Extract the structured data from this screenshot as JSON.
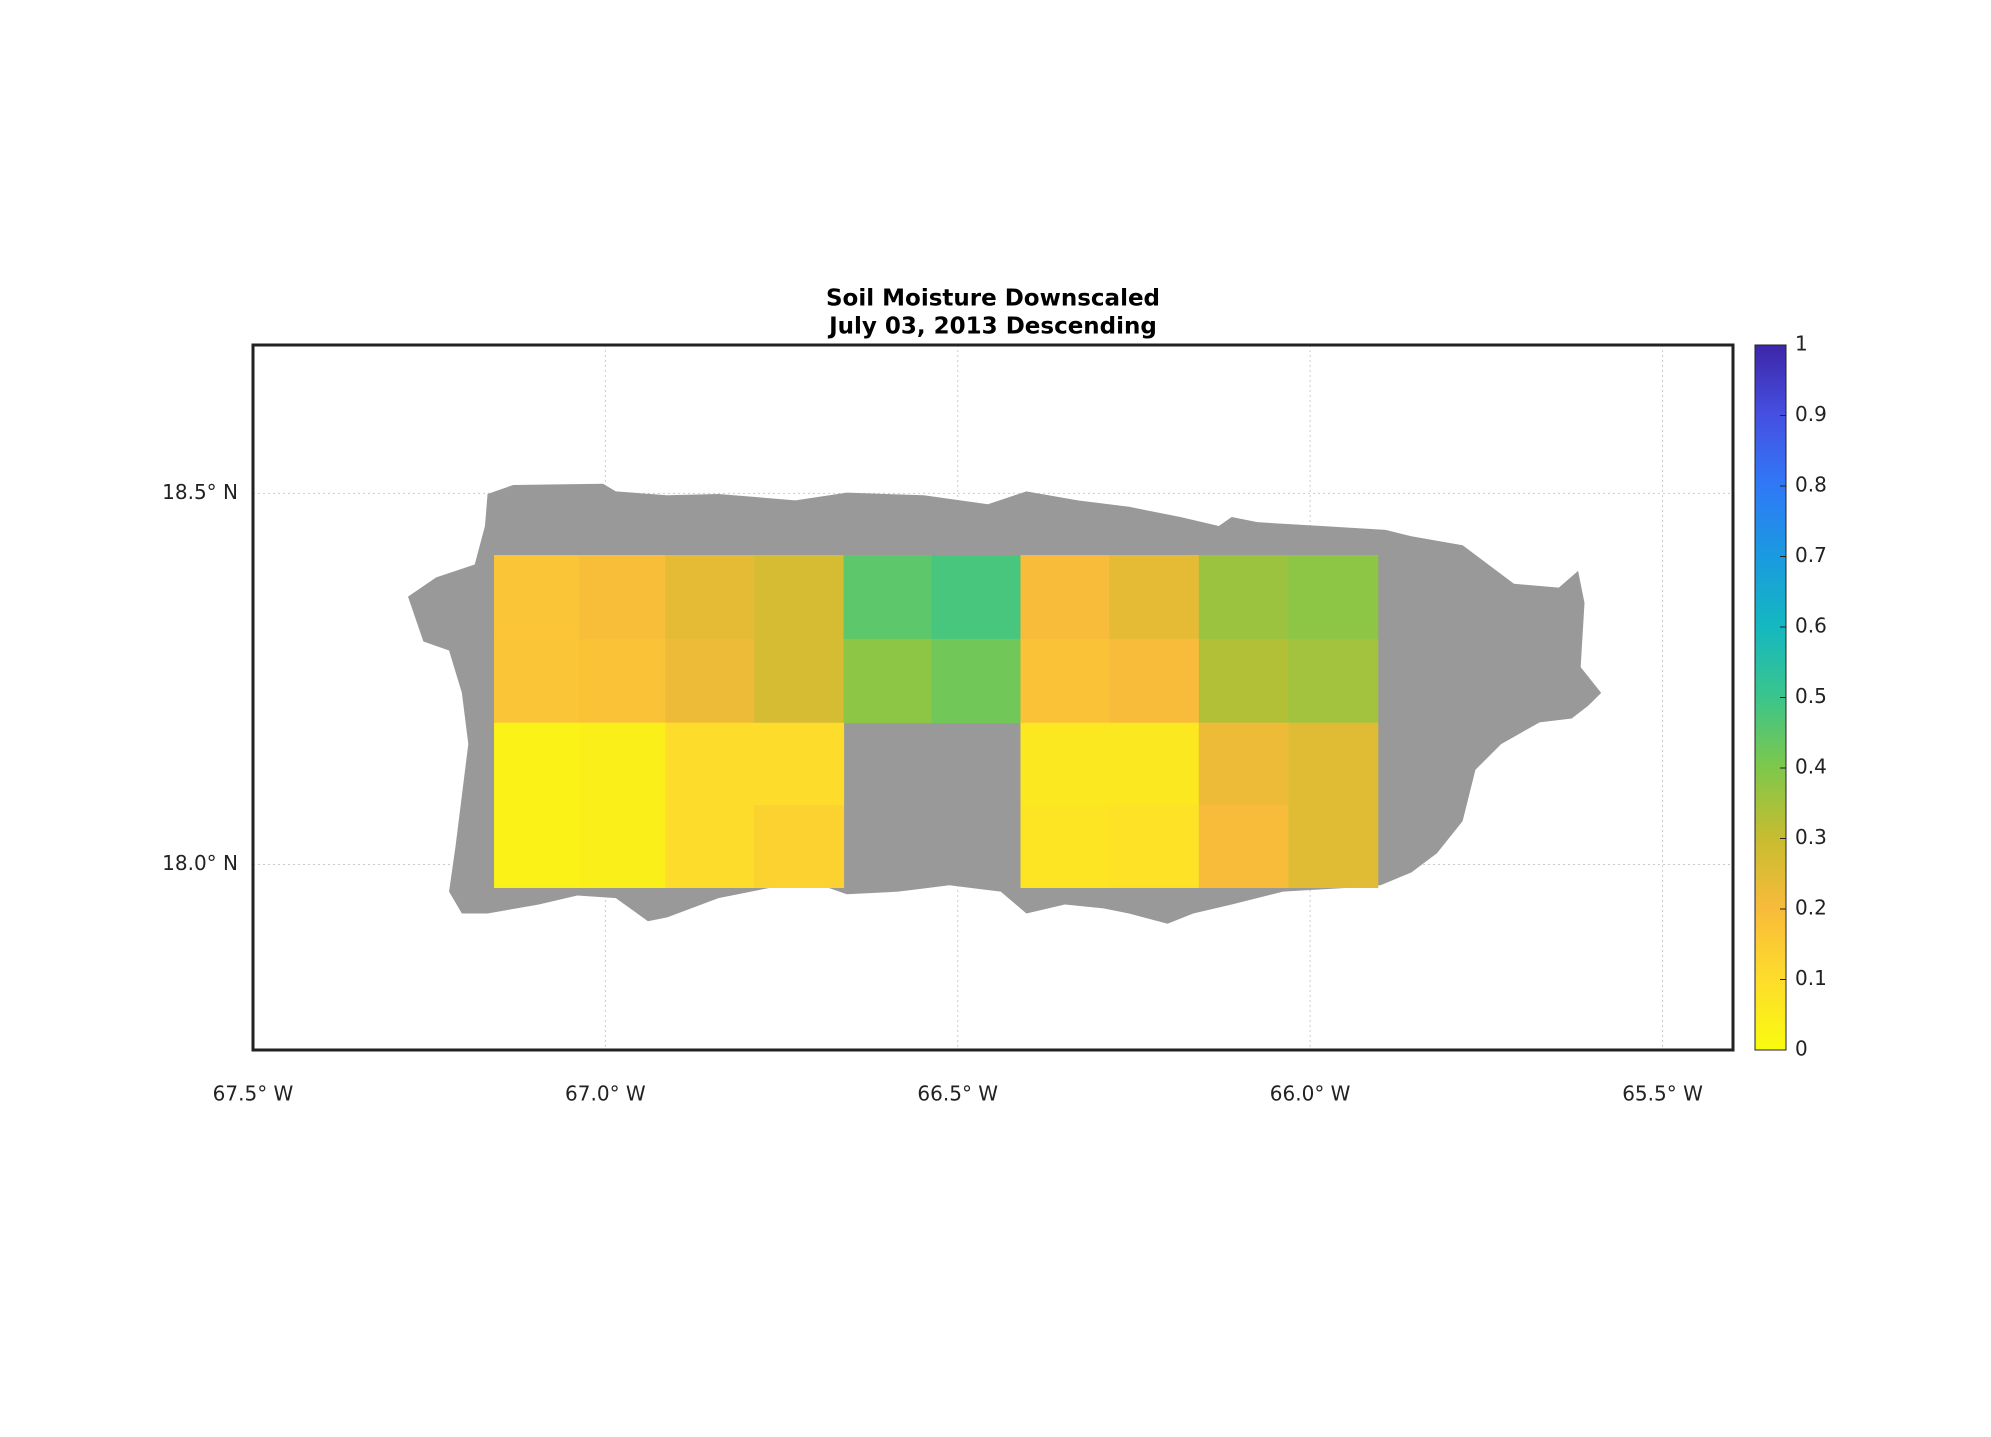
{
  "chart_data": {
    "type": "heatmap",
    "title": [
      "Soil Moisture Downscaled",
      "July 03, 2013 Descending"
    ],
    "xlim": [
      -67.5,
      -65.4
    ],
    "ylim": [
      17.75,
      18.7
    ],
    "xticks": [
      {
        "value": -67.5,
        "label": "67.5° W"
      },
      {
        "value": -67.0,
        "label": "67.0° W"
      },
      {
        "value": -66.5,
        "label": "66.5° W"
      },
      {
        "value": -66.0,
        "label": "66.0° W"
      },
      {
        "value": -65.5,
        "label": "65.5° W"
      }
    ],
    "yticks": [
      {
        "value": 18.0,
        "label": "18.0° N"
      },
      {
        "value": 18.5,
        "label": "18.5° N"
      }
    ],
    "grid": true,
    "x_edges": [
      -67.158,
      -67.037,
      -66.915,
      -66.789,
      -66.662,
      -66.537,
      -66.411,
      -66.285,
      -66.158,
      -66.031,
      -65.904
    ],
    "y_edges": [
      18.417,
      18.304,
      18.191,
      18.08,
      17.969
    ],
    "values": [
      [
        0.17,
        0.19,
        0.24,
        0.27,
        0.45,
        0.48,
        0.2,
        0.24,
        0.36,
        0.38
      ],
      [
        0.17,
        0.18,
        0.22,
        0.27,
        0.38,
        0.42,
        0.18,
        0.2,
        0.33,
        0.35
      ],
      [
        0.03,
        0.04,
        0.1,
        0.1,
        null,
        null,
        0.06,
        0.06,
        0.22,
        0.25
      ],
      [
        0.03,
        0.04,
        0.1,
        0.13,
        null,
        null,
        0.07,
        0.08,
        0.2,
        0.25
      ]
    ],
    "colorbar": {
      "zlim": [
        0,
        1
      ],
      "ticks": [
        0,
        0.1,
        0.2,
        0.3,
        0.4,
        0.5,
        0.6,
        0.7,
        0.8,
        0.9,
        1
      ],
      "colors": [
        "#f9fb0e",
        "#fedc2c",
        "#f8bb3a",
        "#c8bc30",
        "#7ec84a",
        "#3bc58b",
        "#14b8c0",
        "#1a9ae0",
        "#2f79f7",
        "#4550e2",
        "#3e26a8"
      ]
    }
  }
}
